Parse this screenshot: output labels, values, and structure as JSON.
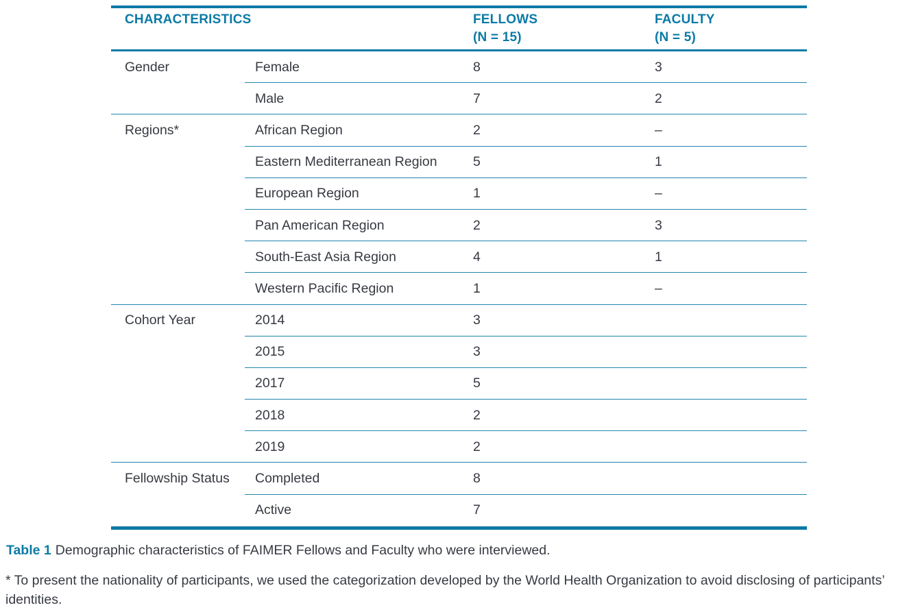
{
  "colors": {
    "accent_teal": "#0b7aa6",
    "row_line_teal": "#2385ad",
    "text_dark": "#363a41"
  },
  "table": {
    "headers": {
      "characteristics": "CHARACTERISTICS",
      "fellows_line1": "FELLOWS",
      "fellows_line2": "(N = 15)",
      "faculty_line1": "FACULTY",
      "faculty_line2": "(N = 5)"
    },
    "sections": [
      {
        "label": "Gender",
        "rows": [
          {
            "label": "Female",
            "fellows": "8",
            "faculty": "3"
          },
          {
            "label": "Male",
            "fellows": "7",
            "faculty": "2"
          }
        ]
      },
      {
        "label": "Regions*",
        "rows": [
          {
            "label": "African Region",
            "fellows": "2",
            "faculty": "–"
          },
          {
            "label": "Eastern Mediterranean Region",
            "fellows": "5",
            "faculty": "1"
          },
          {
            "label": "European Region",
            "fellows": "1",
            "faculty": "–"
          },
          {
            "label": "Pan American Region",
            "fellows": "2",
            "faculty": "3"
          },
          {
            "label": "South-East Asia Region",
            "fellows": "4",
            "faculty": "1"
          },
          {
            "label": "Western Pacific Region",
            "fellows": "1",
            "faculty": "–"
          }
        ]
      },
      {
        "label": "Cohort Year",
        "rows": [
          {
            "label": "2014",
            "fellows": "3",
            "faculty": ""
          },
          {
            "label": "2015",
            "fellows": "3",
            "faculty": ""
          },
          {
            "label": "2017",
            "fellows": "5",
            "faculty": ""
          },
          {
            "label": "2018",
            "fellows": "2",
            "faculty": ""
          },
          {
            "label": "2019",
            "fellows": "2",
            "faculty": ""
          }
        ]
      },
      {
        "label": "Fellowship Status",
        "rows": [
          {
            "label": "Completed",
            "fellows": "8",
            "faculty": ""
          },
          {
            "label": "Active",
            "fellows": "7",
            "faculty": ""
          }
        ]
      }
    ]
  },
  "chart_data": {
    "type": "table",
    "columns": [
      "CHARACTERISTICS",
      "",
      "FELLOWS (N = 15)",
      "FACULTY (N = 5)"
    ],
    "rows": [
      [
        "Gender",
        "Female",
        "8",
        "3"
      ],
      [
        "",
        "Male",
        "7",
        "2"
      ],
      [
        "Regions*",
        "African Region",
        "2",
        "–"
      ],
      [
        "",
        "Eastern Mediterranean Region",
        "5",
        "1"
      ],
      [
        "",
        "European Region",
        "1",
        "–"
      ],
      [
        "",
        "Pan American Region",
        "2",
        "3"
      ],
      [
        "",
        "South-East Asia Region",
        "4",
        "1"
      ],
      [
        "",
        "Western Pacific Region",
        "1",
        "–"
      ],
      [
        "Cohort Year",
        "2014",
        "3",
        ""
      ],
      [
        "",
        "2015",
        "3",
        ""
      ],
      [
        "",
        "2017",
        "5",
        ""
      ],
      [
        "",
        "2018",
        "2",
        ""
      ],
      [
        "",
        "2019",
        "2",
        ""
      ],
      [
        "Fellowship Status",
        "Completed",
        "8",
        ""
      ],
      [
        "",
        "Active",
        "7",
        ""
      ]
    ]
  },
  "caption": {
    "label": "Table 1",
    "text": "Demographic characteristics of FAIMER Fellows and Faculty who were interviewed."
  },
  "footnote": {
    "marker": "*",
    "text": "To present the nationality of participants, we used the categorization developed by the World Health Organization to avoid disclosing of participants’ identities."
  }
}
